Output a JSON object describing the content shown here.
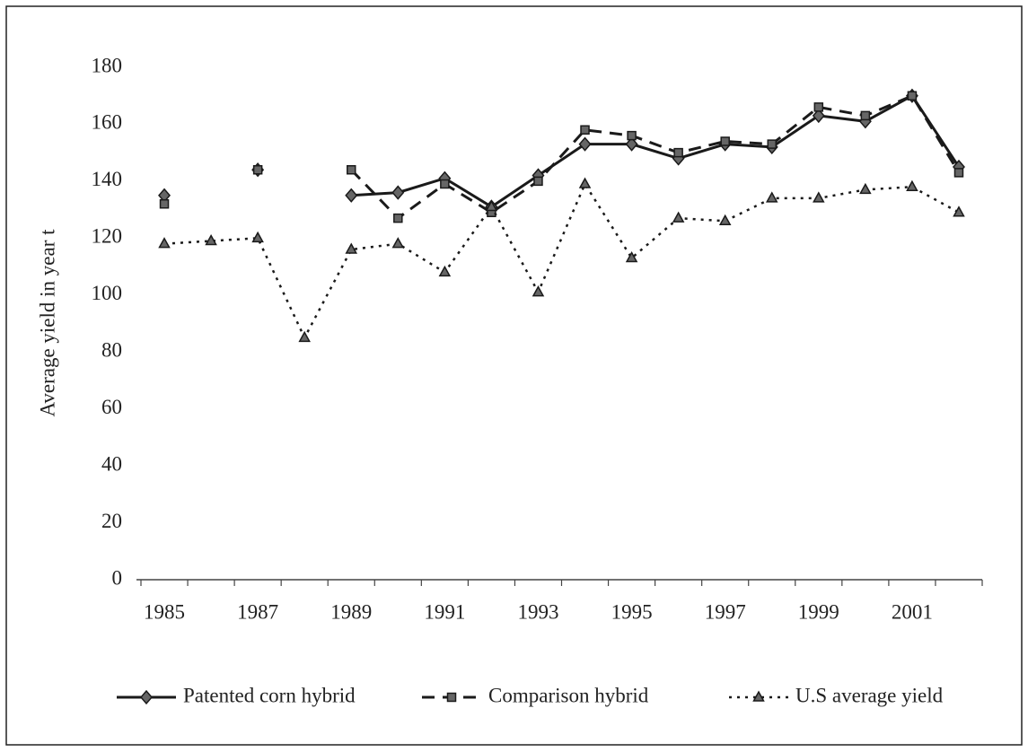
{
  "chart_data": {
    "type": "line",
    "y_label": "Average yield in year t",
    "categories": [
      "1985",
      null,
      "1987",
      null,
      "1989",
      null,
      "1991",
      null,
      "1993",
      null,
      "1995",
      null,
      "1997",
      null,
      "1999",
      null,
      "2001",
      null
    ],
    "ylim": [
      0,
      180
    ],
    "yticks": [
      0,
      20,
      40,
      60,
      80,
      100,
      120,
      140,
      160,
      180
    ],
    "grid": false,
    "legend": "bottom",
    "series": [
      {
        "name": "Patented corn hybrid",
        "color": "#1a1a1a",
        "line_style": "solid",
        "marker": "diamond",
        "values": [
          135,
          null,
          144,
          null,
          135,
          136,
          141,
          131,
          142,
          153,
          153,
          148,
          153,
          152,
          163,
          161,
          170,
          145
        ]
      },
      {
        "name": "Comparison hybrid",
        "color": "#1a1a1a",
        "line_style": "dashed",
        "marker": "square",
        "values": [
          132,
          null,
          144,
          null,
          144,
          127,
          139,
          129,
          140,
          158,
          156,
          150,
          154,
          153,
          166,
          163,
          170,
          143
        ]
      },
      {
        "name": "U.S average yield",
        "color": "#1a1a1a",
        "line_style": "dotted",
        "marker": "triangle",
        "values": [
          118,
          119,
          120,
          85,
          116,
          118,
          108,
          131,
          101,
          139,
          113,
          127,
          126,
          134,
          134,
          137,
          138,
          129
        ]
      }
    ]
  }
}
